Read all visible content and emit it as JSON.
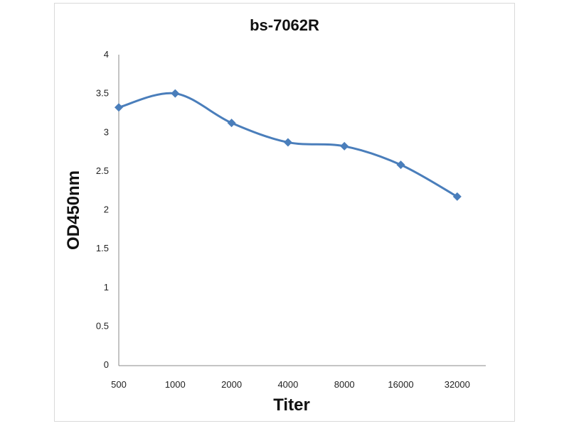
{
  "chart_data": {
    "type": "line",
    "title": "bs-7062R",
    "xlabel": "Titer",
    "ylabel": "OD450nm",
    "categories": [
      "500",
      "1000",
      "2000",
      "4000",
      "8000",
      "16000",
      "32000"
    ],
    "series": [
      {
        "name": "bs-7062R",
        "values": [
          3.32,
          3.5,
          3.12,
          2.87,
          2.82,
          2.58,
          2.17
        ],
        "color": "#4a7ebb"
      }
    ],
    "ylim": [
      0,
      4
    ],
    "yticks": [
      "0",
      "0.5",
      "1",
      "1.5",
      "2",
      "2.5",
      "3",
      "3.5",
      "4"
    ],
    "grid": false,
    "legend": "none"
  }
}
